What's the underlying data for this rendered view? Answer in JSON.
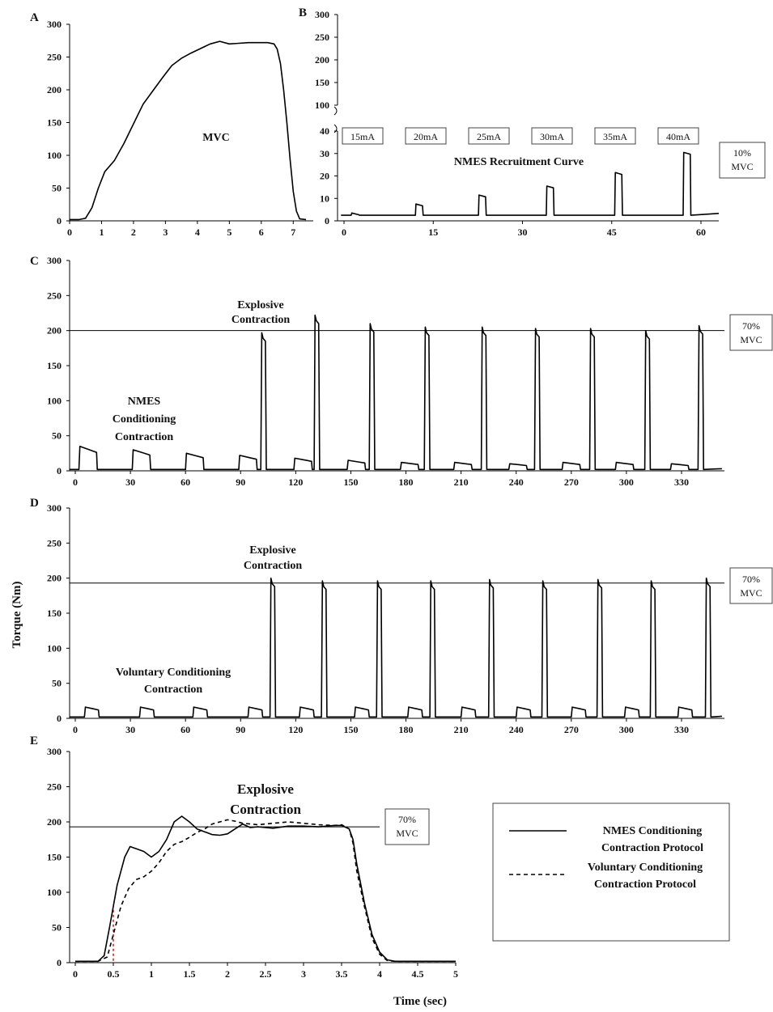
{
  "y_axis_title": "Torque (Nm)",
  "x_axis_title": "Time (sec)",
  "chart_data": [
    {
      "panel": "A",
      "type": "line",
      "annotation": "MVC",
      "x_ticks": [
        "0",
        "1",
        "2",
        "3",
        "4",
        "5",
        "6",
        "7"
      ],
      "y_ticks": [
        "0",
        "50",
        "100",
        "150",
        "200",
        "250",
        "300"
      ],
      "xlim": [
        0,
        7.5
      ],
      "ylim": [
        0,
        300
      ],
      "series": [
        {
          "x": [
            0,
            0.3,
            0.5,
            0.7,
            0.9,
            1.1,
            1.4,
            1.7,
            2.0,
            2.3,
            2.6,
            2.9,
            3.2,
            3.5,
            3.8,
            4.1,
            4.4,
            4.7,
            5.0,
            5.3,
            5.6,
            5.9,
            6.2,
            6.4,
            6.5,
            6.6,
            6.7,
            6.8,
            6.9,
            7.0,
            7.1,
            7.2,
            7.4
          ],
          "y": [
            2,
            2,
            4,
            20,
            50,
            75,
            92,
            118,
            148,
            178,
            198,
            218,
            237,
            248,
            256,
            263,
            270,
            274,
            270,
            271,
            272,
            272,
            272,
            270,
            262,
            240,
            200,
            150,
            95,
            45,
            15,
            3,
            2
          ]
        }
      ]
    },
    {
      "panel": "B",
      "type": "line",
      "annotation": "NMES Recruitment Curve",
      "box_label": "10% MVC",
      "stim_labels": [
        "15mA",
        "20mA",
        "25mA",
        "30mA",
        "35mA",
        "40mA"
      ],
      "x_ticks": [
        "0",
        "15",
        "30",
        "45",
        "60"
      ],
      "y_ticks_lower": [
        "0",
        "10",
        "20",
        "30",
        "40"
      ],
      "y_ticks_upper": [
        "100",
        "150",
        "200",
        "250",
        "300"
      ],
      "xlim": [
        -1,
        63
      ],
      "ylim_lower": [
        0,
        40
      ],
      "ylim_upper": [
        100,
        300
      ],
      "pulses": [
        {
          "start": 1.2,
          "end": 2.6,
          "peak": 3.5
        },
        {
          "start": 12.0,
          "end": 13.3,
          "peak": 7.5
        },
        {
          "start": 22.6,
          "end": 23.9,
          "peak": 11.5
        },
        {
          "start": 34.0,
          "end": 35.3,
          "peak": 15.5
        },
        {
          "start": 45.5,
          "end": 46.8,
          "peak": 21.5
        },
        {
          "start": 57.0,
          "end": 58.3,
          "peak": 30.5
        }
      ],
      "baseline": 2.5
    },
    {
      "panel": "C",
      "type": "line",
      "annotations": [
        "Explosive Contraction",
        "NMES Conditioning Contraction"
      ],
      "box_label": "70% MVC",
      "reference_line": 200,
      "x_ticks": [
        "0",
        "30",
        "60",
        "90",
        "120",
        "150",
        "180",
        "210",
        "240",
        "270",
        "300",
        "330"
      ],
      "y_ticks": [
        "0",
        "50",
        "100",
        "150",
        "200",
        "250",
        "300"
      ],
      "xlim": [
        -4,
        354
      ],
      "ylim": [
        0,
        300
      ],
      "conditioning": [
        {
          "start": 2,
          "end": 12,
          "height": 35
        },
        {
          "start": 31,
          "end": 41,
          "height": 30
        },
        {
          "start": 60,
          "end": 70,
          "height": 25
        },
        {
          "start": 89,
          "end": 99,
          "height": 22
        },
        {
          "start": 119,
          "end": 129,
          "height": 18
        },
        {
          "start": 148,
          "end": 158,
          "height": 15
        },
        {
          "start": 177,
          "end": 187,
          "height": 12
        },
        {
          "start": 206,
          "end": 216,
          "height": 12
        },
        {
          "start": 236,
          "end": 246,
          "height": 10
        },
        {
          "start": 265,
          "end": 275,
          "height": 12
        },
        {
          "start": 294,
          "end": 304,
          "height": 12
        },
        {
          "start": 324,
          "end": 334,
          "height": 10
        }
      ],
      "explosive": [
        {
          "start": 101,
          "end": 104,
          "peak": 197
        },
        {
          "start": 130,
          "end": 133,
          "peak": 222
        },
        {
          "start": 160,
          "end": 163,
          "peak": 210
        },
        {
          "start": 190,
          "end": 193,
          "peak": 205
        },
        {
          "start": 221,
          "end": 224,
          "peak": 205
        },
        {
          "start": 250,
          "end": 253,
          "peak": 203
        },
        {
          "start": 280,
          "end": 283,
          "peak": 203
        },
        {
          "start": 310,
          "end": 313,
          "peak": 200
        },
        {
          "start": 339,
          "end": 342,
          "peak": 207
        }
      ]
    },
    {
      "panel": "D",
      "type": "line",
      "annotations": [
        "Explosive Contraction",
        "Voluntary Conditioning Contraction"
      ],
      "box_label": "70% MVC",
      "reference_line": 193,
      "x_ticks": [
        "0",
        "30",
        "60",
        "90",
        "120",
        "150",
        "180",
        "210",
        "240",
        "270",
        "300",
        "330"
      ],
      "y_ticks": [
        "0",
        "50",
        "100",
        "150",
        "200",
        "250",
        "300"
      ],
      "xlim": [
        -4,
        354
      ],
      "ylim": [
        0,
        300
      ],
      "conditioning": [
        {
          "start": 5,
          "end": 13,
          "height": 16
        },
        {
          "start": 35,
          "end": 43,
          "height": 16
        },
        {
          "start": 64,
          "end": 72,
          "height": 16
        },
        {
          "start": 94,
          "end": 102,
          "height": 16
        },
        {
          "start": 122,
          "end": 130,
          "height": 16
        },
        {
          "start": 152,
          "end": 160,
          "height": 16
        },
        {
          "start": 181,
          "end": 189,
          "height": 16
        },
        {
          "start": 210,
          "end": 218,
          "height": 16
        },
        {
          "start": 240,
          "end": 248,
          "height": 16
        },
        {
          "start": 270,
          "end": 278,
          "height": 16
        },
        {
          "start": 299,
          "end": 307,
          "height": 16
        },
        {
          "start": 328,
          "end": 336,
          "height": 16
        }
      ],
      "explosive": [
        {
          "start": 106,
          "end": 109,
          "peak": 200
        },
        {
          "start": 134,
          "end": 137,
          "peak": 196
        },
        {
          "start": 164,
          "end": 167,
          "peak": 196
        },
        {
          "start": 193,
          "end": 196,
          "peak": 196
        },
        {
          "start": 225,
          "end": 228,
          "peak": 198
        },
        {
          "start": 254,
          "end": 257,
          "peak": 196
        },
        {
          "start": 284,
          "end": 287,
          "peak": 198
        },
        {
          "start": 313,
          "end": 316,
          "peak": 196
        },
        {
          "start": 343,
          "end": 346,
          "peak": 200
        }
      ]
    },
    {
      "panel": "E",
      "type": "line",
      "annotation": "Explosive Contraction",
      "box_label": "70% MVC",
      "reference_line": 193,
      "x_ticks": [
        "0",
        "0.5",
        "1",
        "1.5",
        "2",
        "2.5",
        "3",
        "3.5",
        "4",
        "4.5",
        "5"
      ],
      "y_ticks": [
        "0",
        "50",
        "100",
        "150",
        "200",
        "250",
        "300"
      ],
      "xlim": [
        0,
        5
      ],
      "ylim": [
        0,
        300
      ],
      "onset_marker_x": 0.5,
      "legend": [
        {
          "label_line1": "NMES Conditioning",
          "label_line2": "Contraction Protocol",
          "style": "solid"
        },
        {
          "label_line1": "Voluntary Conditioning",
          "label_line2": "Contraction Protocol",
          "style": "dashed"
        }
      ],
      "series": [
        {
          "name": "NMES Conditioning Contraction Protocol",
          "style": "solid",
          "x": [
            0,
            0.3,
            0.38,
            0.45,
            0.55,
            0.65,
            0.72,
            0.8,
            0.9,
            1.0,
            1.1,
            1.2,
            1.3,
            1.4,
            1.5,
            1.6,
            1.7,
            1.8,
            1.9,
            2.0,
            2.1,
            2.2,
            2.3,
            2.4,
            2.5,
            2.6,
            2.8,
            3.0,
            3.2,
            3.4,
            3.5,
            3.6,
            3.65,
            3.7,
            3.8,
            3.9,
            4.0,
            4.1,
            4.2,
            4.4,
            5.0
          ],
          "y": [
            2,
            2,
            10,
            50,
            110,
            150,
            165,
            162,
            158,
            150,
            158,
            175,
            200,
            208,
            200,
            190,
            186,
            182,
            181,
            183,
            190,
            197,
            192,
            193,
            192,
            191,
            194,
            194,
            193,
            195,
            195,
            190,
            175,
            140,
            85,
            40,
            15,
            4,
            2,
            2,
            2
          ]
        },
        {
          "name": "Voluntary Conditioning Contraction Protocol",
          "style": "dashed",
          "x": [
            0,
            0.3,
            0.42,
            0.5,
            0.6,
            0.7,
            0.8,
            0.9,
            1.0,
            1.1,
            1.2,
            1.3,
            1.4,
            1.5,
            1.6,
            1.7,
            1.8,
            1.9,
            2.0,
            2.1,
            2.2,
            2.4,
            2.6,
            2.8,
            3.0,
            3.2,
            3.4,
            3.5,
            3.6,
            3.65,
            3.7,
            3.8,
            3.9,
            4.0,
            4.1,
            4.2,
            4.4,
            5.0
          ],
          "y": [
            2,
            2,
            8,
            40,
            80,
            105,
            118,
            122,
            130,
            142,
            158,
            168,
            172,
            178,
            185,
            190,
            197,
            200,
            203,
            201,
            198,
            196,
            198,
            200,
            198,
            196,
            195,
            196,
            190,
            170,
            130,
            80,
            35,
            12,
            3,
            2,
            2,
            2
          ]
        }
      ]
    }
  ]
}
